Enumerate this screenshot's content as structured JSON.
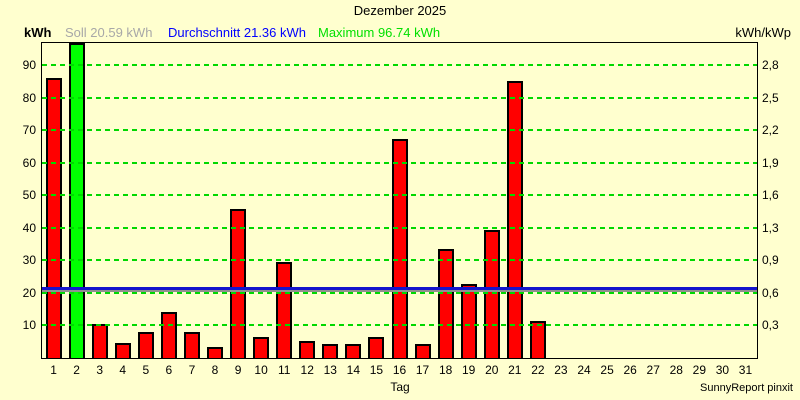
{
  "title": "Dezember 2025",
  "axes": {
    "left_unit": "kWh",
    "right_unit": "kWh/kWp",
    "x_title": "Tag"
  },
  "legend": {
    "soll": "Soll 20.59 kWh",
    "durchschnitt": "Durchschnitt 21.36 kWh",
    "maximum": "Maximum 96.74 kWh"
  },
  "footer": {
    "credit": "SunnyReport pinxit"
  },
  "colors": {
    "bg": "#FFFFCF",
    "bar-red": "#FF0000",
    "bar-green": "#00FF00",
    "grid": "#00D800",
    "avg": "#1414CC",
    "soll": "#909090",
    "legend-soll": "#A8A8A8",
    "legend-avg": "#0000FF",
    "legend-max": "#00E000"
  },
  "chart_data": {
    "type": "bar",
    "title": "Dezember 2025",
    "xlabel": "Tag",
    "ylabel_left": "kWh",
    "ylabel_right": "kWh/kWp",
    "categories": [
      1,
      2,
      3,
      4,
      5,
      6,
      7,
      8,
      9,
      10,
      11,
      12,
      13,
      14,
      15,
      16,
      17,
      18,
      19,
      20,
      21,
      22,
      23,
      24,
      25,
      26,
      27,
      28,
      29,
      30,
      31
    ],
    "values": [
      86.0,
      96.74,
      10.4,
      4.5,
      7.9,
      14.1,
      7.9,
      3.5,
      45.8,
      6.6,
      29.4,
      5.3,
      4.2,
      4.2,
      6.4,
      67.2,
      4.2,
      33.5,
      22.6,
      39.2,
      85.0,
      11.5,
      0,
      0,
      0,
      0,
      0,
      0,
      0,
      0,
      0
    ],
    "maximum_day": 2,
    "maximum_value": 96.74,
    "soll_value": 20.59,
    "durchschnitt_value": 21.36,
    "ylim_left": [
      0,
      96.74
    ],
    "left_ticks": [
      10,
      20,
      30,
      40,
      50,
      60,
      70,
      80,
      90
    ],
    "right_ticks": [
      "0,3",
      "0,6",
      "0,9",
      "1,3",
      "1,6",
      "1,9",
      "2,2",
      "2,5",
      "2,8"
    ],
    "grid": {
      "horizontal": true,
      "style": "dashed",
      "legend_position": "top"
    },
    "bar_color_default": "#FF0000",
    "bar_color_maximum": "#00FF00"
  }
}
